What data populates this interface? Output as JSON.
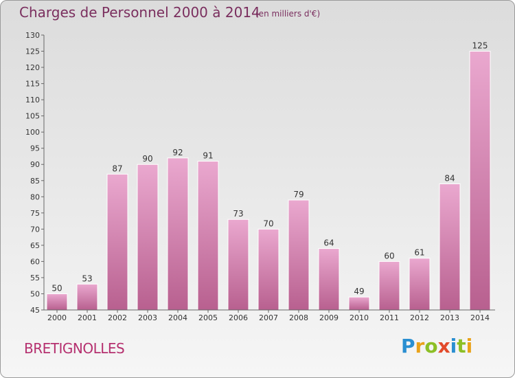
{
  "title": "Charges de Personnel 2000 à 2014",
  "subtitle": "(en milliers d'€)",
  "commune": "BRETIGNOLLES",
  "brand": {
    "letters": [
      "P",
      "r",
      "o",
      "x",
      "i",
      "t",
      "i"
    ],
    "colors": [
      "#2a8fd1",
      "#e9a21a",
      "#8cbf26",
      "#e24a2b",
      "#2a8fd1",
      "#8cbf26",
      "#e9a21a"
    ]
  },
  "colors": {
    "bar_top": "#eaa8cf",
    "bar_bottom": "#b8608f",
    "title": "#7a2e5e",
    "commune": "#b5306f"
  },
  "chart_data": {
    "type": "bar",
    "categories": [
      "2000",
      "2001",
      "2002",
      "2003",
      "2004",
      "2005",
      "2006",
      "2007",
      "2008",
      "2009",
      "2010",
      "2011",
      "2012",
      "2013",
      "2014"
    ],
    "values": [
      50,
      53,
      87,
      90,
      92,
      91,
      73,
      70,
      79,
      64,
      49,
      60,
      61,
      84,
      125
    ],
    "title": "Charges de Personnel 2000 à 2014",
    "xlabel": "",
    "ylabel": "",
    "ylim": [
      45,
      130
    ],
    "yticks": [
      45,
      50,
      55,
      60,
      65,
      70,
      75,
      80,
      85,
      90,
      95,
      100,
      105,
      110,
      115,
      120,
      125,
      130
    ],
    "grid": false
  }
}
